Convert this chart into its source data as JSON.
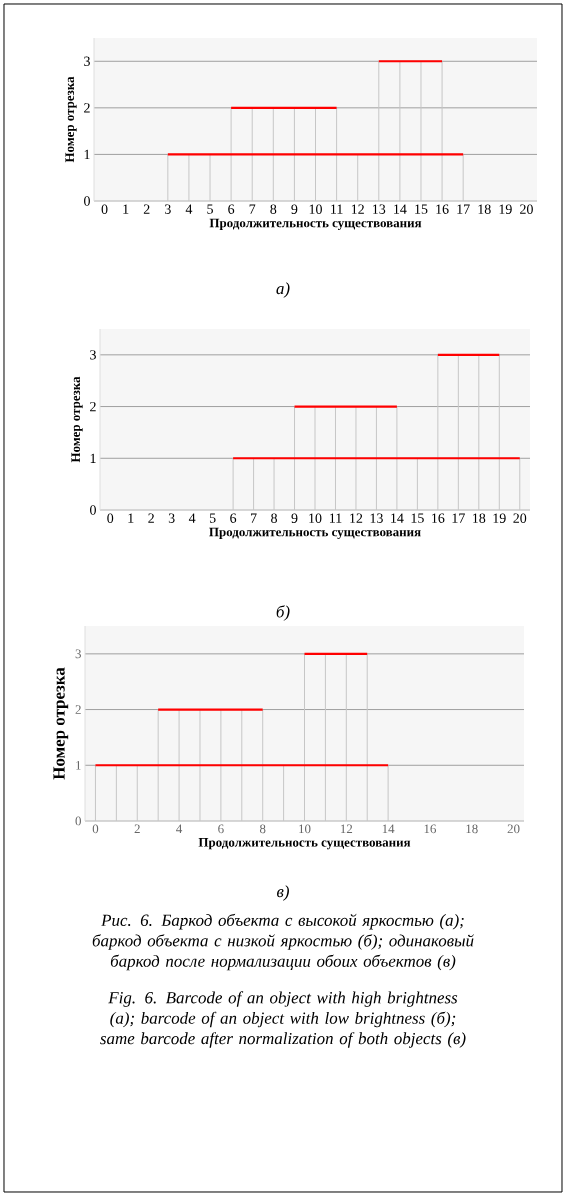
{
  "chart_data": [
    {
      "type": "line",
      "xlabel": "Продолжительность существования",
      "ylabel": "Номер отрезка",
      "categories": [
        "0",
        "1",
        "2",
        "3",
        "4",
        "5",
        "6",
        "7",
        "8",
        "9",
        "10",
        "11",
        "12",
        "13",
        "14",
        "15",
        "16",
        "17",
        "18",
        "19",
        "20"
      ],
      "series": [
        {
          "type": "bar",
          "color": "#c6c6c6",
          "values": [
            null,
            null,
            null,
            1,
            1,
            1,
            null,
            null,
            null,
            null,
            null,
            null,
            1,
            null,
            null,
            null,
            null,
            1,
            null,
            null,
            null
          ]
        },
        {
          "type": "bar",
          "color": "#c6c6c6",
          "values": [
            null,
            null,
            null,
            null,
            null,
            null,
            2,
            2,
            2,
            2,
            2,
            2,
            null,
            null,
            null,
            null,
            null,
            null,
            null,
            null,
            null
          ]
        },
        {
          "type": "bar",
          "color": "#c6c6c6",
          "values": [
            null,
            null,
            null,
            null,
            null,
            null,
            null,
            null,
            null,
            null,
            null,
            null,
            null,
            3,
            3,
            3,
            3,
            null,
            null,
            null,
            null
          ]
        },
        {
          "color": "#ff0000",
          "values": [
            null,
            null,
            null,
            1,
            1,
            1,
            1,
            1,
            1,
            1,
            1,
            1,
            1,
            1,
            1,
            1,
            1,
            1,
            null,
            null,
            null
          ]
        },
        {
          "color": "#ff0000",
          "values": [
            null,
            null,
            null,
            null,
            null,
            null,
            2,
            2,
            2,
            2,
            2,
            2,
            null,
            null,
            null,
            null,
            null,
            null,
            null,
            null,
            null
          ]
        },
        {
          "color": "#ff0000",
          "values": [
            null,
            null,
            null,
            null,
            null,
            null,
            null,
            null,
            null,
            null,
            null,
            null,
            null,
            3,
            3,
            3,
            3,
            null,
            null,
            null,
            null
          ]
        }
      ],
      "ylim": [
        0,
        3.5
      ],
      "yticks": [
        0,
        1,
        2,
        3
      ],
      "grid": "y",
      "annotations": [
        "а)"
      ]
    },
    {
      "type": "line",
      "xlabel": "Продолжительность существования",
      "ylabel": "Номер отрезка",
      "categories": [
        "0",
        "1",
        "2",
        "3",
        "4",
        "5",
        "6",
        "7",
        "8",
        "9",
        "10",
        "11",
        "12",
        "13",
        "14",
        "15",
        "16",
        "17",
        "18",
        "19",
        "20"
      ],
      "series": [
        {
          "type": "bar",
          "color": "#c6c6c6",
          "values": [
            null,
            null,
            null,
            null,
            null,
            null,
            1,
            1,
            1,
            null,
            null,
            null,
            null,
            null,
            null,
            1,
            null,
            null,
            null,
            null,
            1
          ]
        },
        {
          "type": "bar",
          "color": "#c6c6c6",
          "values": [
            null,
            null,
            null,
            null,
            null,
            null,
            null,
            null,
            null,
            2,
            2,
            2,
            2,
            2,
            2,
            null,
            null,
            null,
            null,
            null,
            null
          ]
        },
        {
          "type": "bar",
          "color": "#c6c6c6",
          "values": [
            null,
            null,
            null,
            null,
            null,
            null,
            null,
            null,
            null,
            null,
            null,
            null,
            null,
            null,
            null,
            null,
            3,
            3,
            3,
            3,
            null
          ]
        },
        {
          "color": "#ff0000",
          "values": [
            null,
            null,
            null,
            null,
            null,
            null,
            1,
            1,
            1,
            1,
            1,
            1,
            1,
            1,
            1,
            1,
            1,
            1,
            1,
            1,
            1
          ]
        },
        {
          "color": "#ff0000",
          "values": [
            null,
            null,
            null,
            null,
            null,
            null,
            null,
            null,
            null,
            2,
            2,
            2,
            2,
            2,
            2,
            null,
            null,
            null,
            null,
            null,
            null
          ]
        },
        {
          "color": "#ff0000",
          "values": [
            null,
            null,
            null,
            null,
            null,
            null,
            null,
            null,
            null,
            null,
            null,
            null,
            null,
            null,
            null,
            null,
            3,
            3,
            3,
            3,
            null
          ]
        }
      ],
      "ylim": [
        0,
        3.5
      ],
      "yticks": [
        0,
        1,
        2,
        3
      ],
      "grid": "y",
      "annotations": [
        "б)"
      ]
    },
    {
      "type": "line",
      "xlabel": "Продолжительность существования",
      "ylabel": "Номер отрезка",
      "x": [
        0,
        1,
        2,
        3,
        4,
        5,
        6,
        7,
        8,
        9,
        10,
        11,
        12,
        13,
        14
      ],
      "series": [
        {
          "type": "bar",
          "color": "#c6c6c6",
          "values": [
            1,
            1,
            1,
            null,
            null,
            null,
            null,
            null,
            null,
            1,
            null,
            null,
            null,
            null,
            1
          ]
        },
        {
          "type": "bar",
          "color": "#c6c6c6",
          "values": [
            null,
            null,
            null,
            2,
            2,
            2,
            2,
            2,
            2,
            null,
            null,
            null,
            null,
            null,
            null
          ]
        },
        {
          "type": "bar",
          "color": "#c6c6c6",
          "values": [
            null,
            null,
            null,
            null,
            null,
            null,
            null,
            null,
            null,
            null,
            3,
            3,
            3,
            3,
            null
          ]
        },
        {
          "color": "#ff0000",
          "values": [
            1,
            1,
            1,
            1,
            1,
            1,
            1,
            1,
            1,
            1,
            1,
            1,
            1,
            1,
            1
          ]
        },
        {
          "color": "#ff0000",
          "values": [
            null,
            null,
            null,
            2,
            2,
            2,
            2,
            2,
            2,
            null,
            null,
            null,
            null,
            null,
            null
          ]
        },
        {
          "color": "#ff0000",
          "values": [
            null,
            null,
            null,
            null,
            null,
            null,
            null,
            null,
            null,
            null,
            3,
            3,
            3,
            3,
            null
          ]
        }
      ],
      "xlim": [
        -0.5,
        20.5
      ],
      "xticks": [
        0,
        2,
        4,
        6,
        8,
        10,
        12,
        14,
        16,
        18,
        20
      ],
      "ylim": [
        0,
        3.5
      ],
      "yticks": [
        0,
        1,
        2,
        3
      ],
      "grid": "y",
      "annotations": [
        "в)",
        "Рис. 6. Баркод объекта с высокой яркостью (а); баркод объекта с низкой яркостью (б); одинаковый баркод после нормализации обоих объектов (в)",
        "Fig. 6. Barcode of an object with high brightness (a); barcode of an object with low brightness (б); same barcode after normalization of both objects (в)"
      ]
    }
  ]
}
